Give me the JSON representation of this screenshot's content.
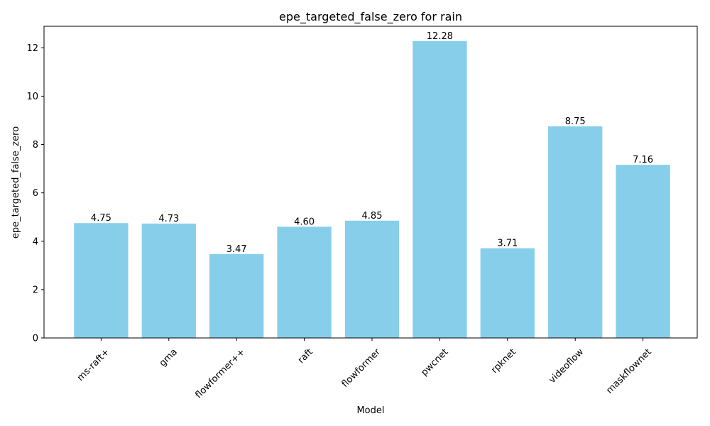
{
  "chart_data": {
    "type": "bar",
    "title": "epe_targeted_false_zero for rain",
    "xlabel": "Model",
    "ylabel": "epe_targeted_false_zero",
    "categories": [
      "ms-raft+",
      "gma",
      "flowformer++",
      "raft",
      "flowformer",
      "pwcnet",
      "rpknet",
      "videoflow",
      "maskflownet"
    ],
    "values": [
      4.75,
      4.73,
      3.47,
      4.6,
      4.85,
      12.28,
      3.71,
      8.75,
      7.16
    ],
    "value_labels": [
      "4.75",
      "4.73",
      "3.47",
      "4.60",
      "4.85",
      "12.28",
      "3.71",
      "8.75",
      "7.16"
    ],
    "ylim": [
      0,
      12.89
    ],
    "yticks": [
      0,
      2,
      4,
      6,
      8,
      10,
      12
    ],
    "ytick_labels": [
      "0",
      "2",
      "4",
      "6",
      "8",
      "10",
      "12"
    ],
    "bar_color": "#87CEEB",
    "grid": false,
    "legend": "none"
  }
}
